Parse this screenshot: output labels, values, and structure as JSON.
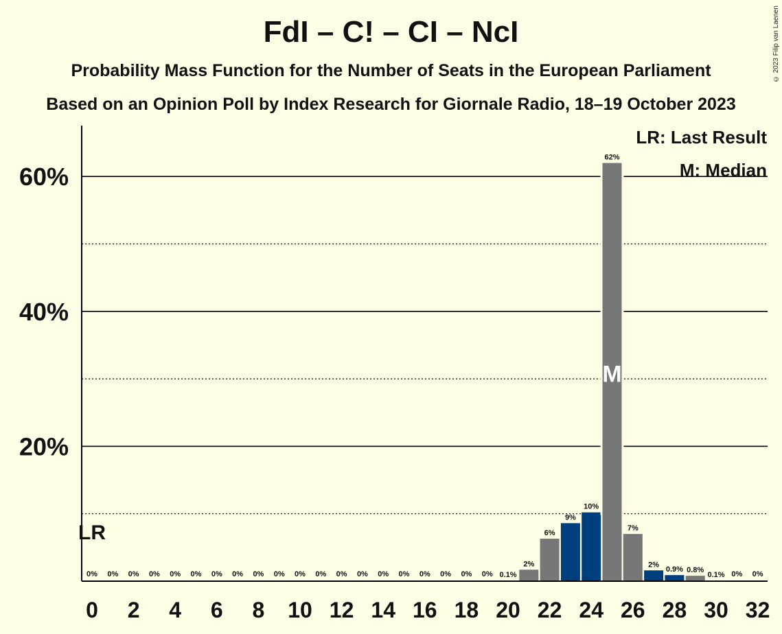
{
  "title": "FdI – C! – CI – NcI",
  "subtitle": "Probability Mass Function for the Number of Seats in the European Parliament",
  "subtitle2": "Based on an Opinion Poll by Index Research for Giornale Radio, 18–19 October 2023",
  "copyright": "© 2023 Filip van Laenen",
  "legend": {
    "last_result": "LR: Last Result",
    "median": "M: Median"
  },
  "colors": {
    "background": "#FFFDE6",
    "grey": "#777777",
    "blue": "#003F7D"
  },
  "chart_data": {
    "type": "bar",
    "x": [
      0,
      1,
      2,
      3,
      4,
      5,
      6,
      7,
      8,
      9,
      10,
      11,
      12,
      13,
      14,
      15,
      16,
      17,
      18,
      19,
      20,
      21,
      22,
      23,
      24,
      25,
      26,
      27,
      28,
      29,
      30,
      31,
      32
    ],
    "values": [
      0,
      0,
      0,
      0,
      0,
      0,
      0,
      0,
      0,
      0,
      0,
      0,
      0,
      0,
      0,
      0,
      0,
      0,
      0,
      0,
      0.1,
      1.7,
      6.3,
      8.6,
      10.2,
      62,
      7,
      1.6,
      0.9,
      0.8,
      0.1,
      0,
      0
    ],
    "labels": [
      "0%",
      "0%",
      "0%",
      "0%",
      "0%",
      "0%",
      "0%",
      "0%",
      "0%",
      "0%",
      "0%",
      "0%",
      "0%",
      "0%",
      "0%",
      "0%",
      "0%",
      "0%",
      "0%",
      "0%",
      "0.1%",
      "2%",
      "6%",
      "9%",
      "10%",
      "62%",
      "7%",
      "2%",
      "0.9%",
      "0.8%",
      "0.1%",
      "0%",
      "0%"
    ],
    "colors": [
      "grey",
      "blue",
      "grey",
      "blue",
      "grey",
      "blue",
      "grey",
      "blue",
      "grey",
      "blue",
      "grey",
      "blue",
      "grey",
      "blue",
      "grey",
      "blue",
      "grey",
      "blue",
      "grey",
      "blue",
      "grey",
      "grey",
      "grey",
      "blue",
      "blue",
      "grey",
      "grey",
      "blue",
      "blue",
      "grey",
      "grey",
      "grey",
      "grey"
    ],
    "xticks": [
      0,
      2,
      4,
      6,
      8,
      10,
      12,
      14,
      16,
      18,
      20,
      22,
      24,
      26,
      28,
      30,
      32
    ],
    "yticks": [
      {
        "value": 20,
        "label": "20%"
      },
      {
        "value": 40,
        "label": "40%"
      },
      {
        "value": 60,
        "label": "60%"
      }
    ],
    "minor_gridlines": [
      10,
      30,
      50
    ],
    "ylim": [
      0,
      67
    ],
    "last_result_seat": 0,
    "last_result_marker": "LR",
    "median_seat": 25,
    "median_marker": "M"
  }
}
